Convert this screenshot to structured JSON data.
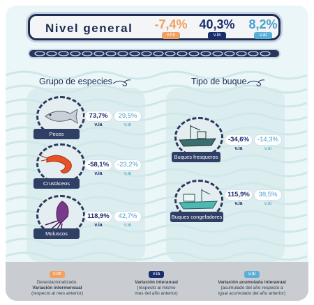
{
  "header": {
    "title": "Nivel general",
    "vim_value": "-7,4%",
    "via_value": "40,3%",
    "vai_value": "8,2%",
    "vim_label": "v.im",
    "via_label": "v.ia",
    "vai_label": "v.ai"
  },
  "groups": {
    "title": "Grupo de especies",
    "items": [
      {
        "name": "Peces",
        "via": "73,7%",
        "vai": "29,5%"
      },
      {
        "name": "Crustáceos",
        "via": "-58,1%",
        "vai": "-23,2%"
      },
      {
        "name": "Moluscos",
        "via": "118,9%",
        "vai": "42,7%"
      }
    ]
  },
  "boats": {
    "title": "Tipo de buque",
    "items": [
      {
        "name": "Buques fresqueros",
        "via": "-34,6%",
        "vai": "-14,3%"
      },
      {
        "name": "Buques congeladores",
        "via": "115,9%",
        "vai": "38,5%"
      }
    ]
  },
  "labels": {
    "via": "v.ia",
    "vai": "v.ai"
  },
  "legend": {
    "vim": {
      "label": "v.im",
      "line1": "Desestacionalizado.",
      "line2": "Variación intermensual",
      "line3": "(respecto al mes anterior)"
    },
    "via": {
      "label": "v.ia",
      "line1": "Variación interanual",
      "line2": "(respecto al mismo",
      "line3": "mes del año anterior)"
    },
    "vai": {
      "label": "v.ai",
      "line1": "Variación acumulada interanual",
      "line2": "(acumulado del año respecto a",
      "line3": "igual acumulado del año anterior)"
    }
  },
  "colors": {
    "vim": "#f0a060",
    "via": "#1a2d6e",
    "vai": "#4aa0d0",
    "dark": "#1d2d55"
  }
}
